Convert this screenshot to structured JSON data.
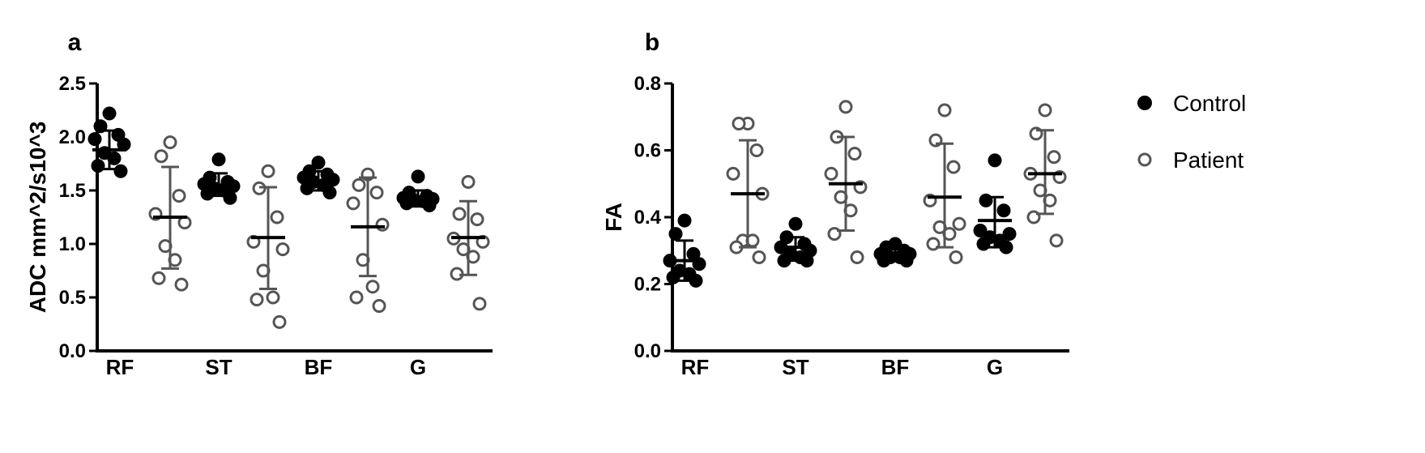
{
  "legend": {
    "items": [
      {
        "label": "Control",
        "filled": true,
        "color": "#000000"
      },
      {
        "label": "Patient",
        "filled": false,
        "color": "#555555"
      }
    ]
  },
  "chart_data": [
    {
      "type": "scatter",
      "panel": "a",
      "ylabel": "ADC mm^2/s10^3",
      "ylim": [
        0,
        2.5
      ],
      "yticks": [
        "0.0",
        "0.5",
        "1.0",
        "1.5",
        "2.0",
        "2.5"
      ],
      "categories": [
        "RF",
        "ST",
        "BF",
        "G"
      ],
      "series": [
        {
          "name": "Control",
          "groups": [
            {
              "category": "RF",
              "points": [
                2.22,
                2.1,
                2.02,
                1.98,
                1.93,
                1.85,
                1.8,
                1.73,
                1.68
              ],
              "mean": 1.88,
              "sd_low": 1.7,
              "sd_high": 2.06
            },
            {
              "category": "ST",
              "points": [
                1.79,
                1.62,
                1.58,
                1.56,
                1.54,
                1.52,
                1.5,
                1.47,
                1.43
              ],
              "mean": 1.55,
              "sd_low": 1.45,
              "sd_high": 1.66
            },
            {
              "category": "BF",
              "points": [
                1.76,
                1.68,
                1.65,
                1.62,
                1.6,
                1.58,
                1.55,
                1.52,
                1.48
              ],
              "mean": 1.59,
              "sd_low": 1.5,
              "sd_high": 1.68
            },
            {
              "category": "G",
              "points": [
                1.63,
                1.48,
                1.45,
                1.43,
                1.42,
                1.41,
                1.4,
                1.38,
                1.36
              ],
              "mean": 1.42,
              "sd_low": 1.35,
              "sd_high": 1.5
            }
          ]
        },
        {
          "name": "Patient",
          "groups": [
            {
              "category": "RF",
              "points": [
                1.95,
                1.82,
                1.45,
                1.28,
                1.2,
                0.98,
                0.85,
                0.68,
                0.62
              ],
              "mean": 1.25,
              "sd_low": 0.77,
              "sd_high": 1.72
            },
            {
              "category": "ST",
              "points": [
                1.68,
                1.52,
                1.25,
                1.02,
                0.95,
                0.75,
                0.5,
                0.48,
                0.27
              ],
              "mean": 1.06,
              "sd_low": 0.58,
              "sd_high": 1.53
            },
            {
              "category": "BF",
              "points": [
                1.65,
                1.55,
                1.48,
                1.38,
                1.18,
                0.85,
                0.6,
                0.5,
                0.42
              ],
              "mean": 1.16,
              "sd_low": 0.7,
              "sd_high": 1.62
            },
            {
              "category": "G",
              "points": [
                1.58,
                1.28,
                1.23,
                1.05,
                1.02,
                0.95,
                0.88,
                0.72,
                0.44
              ],
              "mean": 1.06,
              "sd_low": 0.71,
              "sd_high": 1.4
            }
          ]
        }
      ]
    },
    {
      "type": "scatter",
      "panel": "b",
      "ylabel": "FA",
      "ylim": [
        0,
        0.8
      ],
      "yticks": [
        "0.0",
        "0.2",
        "0.4",
        "0.6",
        "0.8"
      ],
      "categories": [
        "RF",
        "ST",
        "BF",
        "G"
      ],
      "series": [
        {
          "name": "Control",
          "groups": [
            {
              "category": "RF",
              "points": [
                0.39,
                0.35,
                0.29,
                0.27,
                0.26,
                0.24,
                0.23,
                0.22,
                0.21
              ],
              "mean": 0.27,
              "sd_low": 0.21,
              "sd_high": 0.33
            },
            {
              "category": "ST",
              "points": [
                0.38,
                0.34,
                0.32,
                0.31,
                0.3,
                0.29,
                0.28,
                0.27,
                0.27
              ],
              "mean": 0.31,
              "sd_low": 0.27,
              "sd_high": 0.34
            },
            {
              "category": "BF",
              "points": [
                0.32,
                0.31,
                0.3,
                0.29,
                0.29,
                0.28,
                0.28,
                0.27,
                0.27
              ],
              "mean": 0.29,
              "sd_low": 0.27,
              "sd_high": 0.31
            },
            {
              "category": "G",
              "points": [
                0.57,
                0.45,
                0.42,
                0.36,
                0.35,
                0.34,
                0.33,
                0.32,
                0.31
              ],
              "mean": 0.39,
              "sd_low": 0.31,
              "sd_high": 0.46
            }
          ]
        },
        {
          "name": "Patient",
          "groups": [
            {
              "category": "RF",
              "points": [
                0.68,
                0.68,
                0.6,
                0.53,
                0.47,
                0.33,
                0.33,
                0.31,
                0.28
              ],
              "mean": 0.47,
              "sd_low": 0.31,
              "sd_high": 0.63
            },
            {
              "category": "ST",
              "points": [
                0.73,
                0.64,
                0.59,
                0.53,
                0.49,
                0.46,
                0.42,
                0.35,
                0.28
              ],
              "mean": 0.5,
              "sd_low": 0.36,
              "sd_high": 0.64
            },
            {
              "category": "BF",
              "points": [
                0.72,
                0.63,
                0.55,
                0.45,
                0.38,
                0.37,
                0.35,
                0.32,
                0.28
              ],
              "mean": 0.46,
              "sd_low": 0.31,
              "sd_high": 0.62
            },
            {
              "category": "G",
              "points": [
                0.72,
                0.65,
                0.58,
                0.53,
                0.52,
                0.48,
                0.45,
                0.4,
                0.33
              ],
              "mean": 0.53,
              "sd_low": 0.41,
              "sd_high": 0.66
            }
          ]
        }
      ]
    }
  ]
}
